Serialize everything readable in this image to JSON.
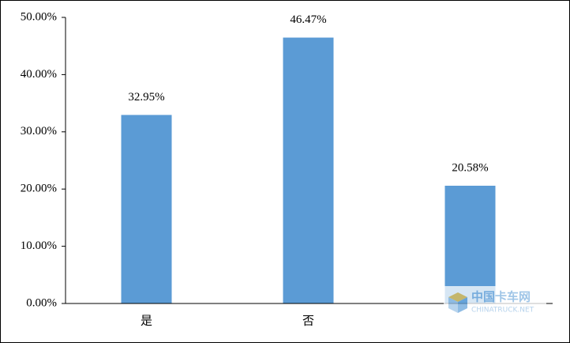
{
  "chart_data": {
    "type": "bar",
    "categories": [
      "是",
      "否",
      null
    ],
    "values": [
      32.95,
      46.47,
      20.58
    ],
    "value_labels": [
      "32.95%",
      "46.47%",
      "20.58%"
    ],
    "color": "#5b9bd5",
    "ylim": [
      0,
      50
    ],
    "yticks": [
      {
        "value": 0,
        "label": "0.00%"
      },
      {
        "value": 10,
        "label": "10.00%"
      },
      {
        "value": 20,
        "label": "20.00%"
      },
      {
        "value": 30,
        "label": "30.00%"
      },
      {
        "value": 40,
        "label": "40.00%"
      },
      {
        "value": 50,
        "label": "50.00%"
      }
    ],
    "grid": false,
    "watermark": {
      "title": "中国卡车网",
      "subtitle": "CHINATRUCK.NET"
    }
  }
}
